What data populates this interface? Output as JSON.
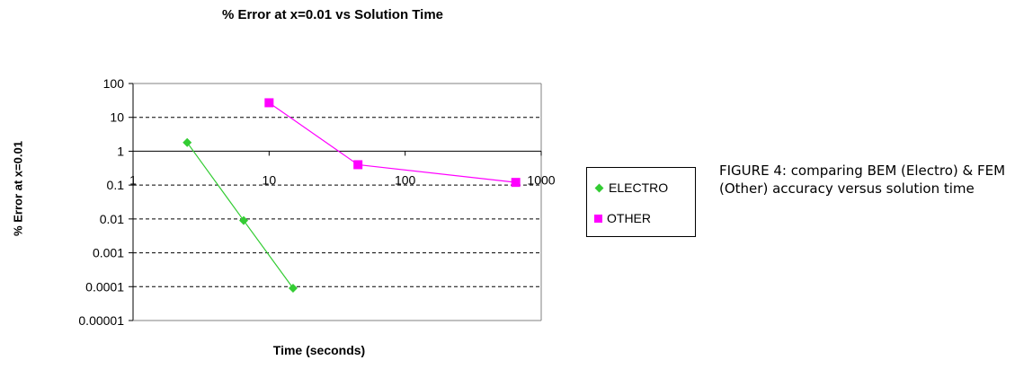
{
  "caption": "FIGURE 4: comparing BEM (Electro) & FEM (Other) accuracy versus solution time",
  "chart_data": {
    "type": "line",
    "title": "% Error at x=0.01 vs Solution Time",
    "xlabel": "Time (seconds)",
    "ylabel": "% Error at x=0.01",
    "x_scale": "log",
    "y_scale": "log",
    "xlim": [
      1,
      1000
    ],
    "ylim": [
      1e-05,
      100
    ],
    "x_ticks": [
      {
        "value": 1,
        "label": "1"
      },
      {
        "value": 10,
        "label": "10"
      },
      {
        "value": 100,
        "label": "100"
      },
      {
        "value": 1000,
        "label": "1000"
      }
    ],
    "y_ticks": [
      {
        "value": 100,
        "label": "100"
      },
      {
        "value": 10,
        "label": "10"
      },
      {
        "value": 1,
        "label": "1"
      },
      {
        "value": 0.1,
        "label": "0.1"
      },
      {
        "value": 0.01,
        "label": "0.01"
      },
      {
        "value": 0.001,
        "label": "0.001"
      },
      {
        "value": 0.0001,
        "label": "0.0001"
      },
      {
        "value": 1e-05,
        "label": "0.00001"
      }
    ],
    "x_axis_crosses_y_at": 1,
    "grid": "horizontal dashed",
    "legend_position": "right",
    "series": [
      {
        "name": "ELECTRO",
        "color": "#33cc33",
        "marker": "diamond",
        "points": [
          {
            "x": 2.5,
            "y": 1.8
          },
          {
            "x": 6.5,
            "y": 0.009
          },
          {
            "x": 15,
            "y": 9e-05
          }
        ]
      },
      {
        "name": "OTHER",
        "color": "#ff00ff",
        "marker": "square",
        "points": [
          {
            "x": 10,
            "y": 27
          },
          {
            "x": 45,
            "y": 0.4
          },
          {
            "x": 650,
            "y": 0.12
          }
        ]
      }
    ]
  }
}
